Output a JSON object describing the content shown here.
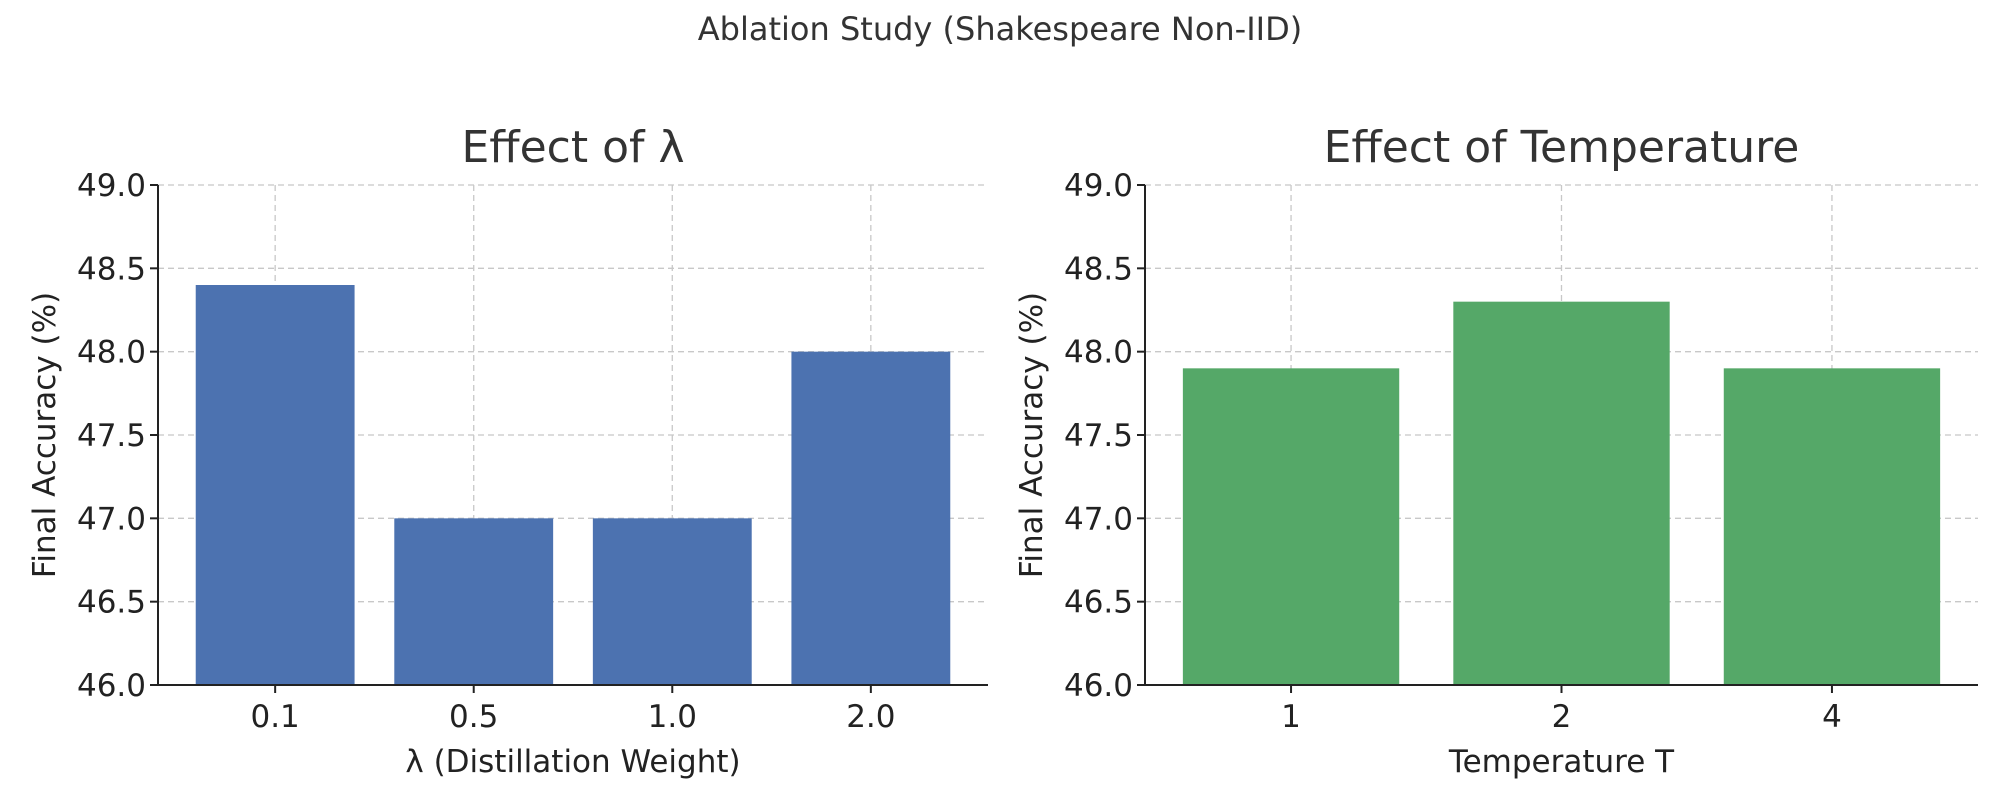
{
  "figure": {
    "title": "Ablation Study (Shakespeare Non-IID)"
  },
  "chart_data": [
    {
      "type": "bar",
      "title": "Effect of λ",
      "xlabel": "λ (Distillation Weight)",
      "ylabel": "Final Accuracy (%)",
      "categories": [
        "0.1",
        "0.5",
        "1.0",
        "2.0"
      ],
      "values": [
        48.4,
        47.0,
        47.0,
        48.0
      ],
      "ylim": [
        46.0,
        49.0
      ],
      "yticks": [
        46.0,
        46.5,
        47.0,
        47.5,
        48.0,
        48.5,
        49.0
      ],
      "grid": true,
      "color": "#4c72b0"
    },
    {
      "type": "bar",
      "title": "Effect of Temperature",
      "xlabel": "Temperature T",
      "ylabel": "Final Accuracy (%)",
      "categories": [
        "1",
        "2",
        "4"
      ],
      "values": [
        47.9,
        48.3,
        47.9
      ],
      "ylim": [
        46.0,
        49.0
      ],
      "yticks": [
        46.0,
        46.5,
        47.0,
        47.5,
        48.0,
        48.5,
        49.0
      ],
      "grid": true,
      "color": "#55a868"
    }
  ]
}
